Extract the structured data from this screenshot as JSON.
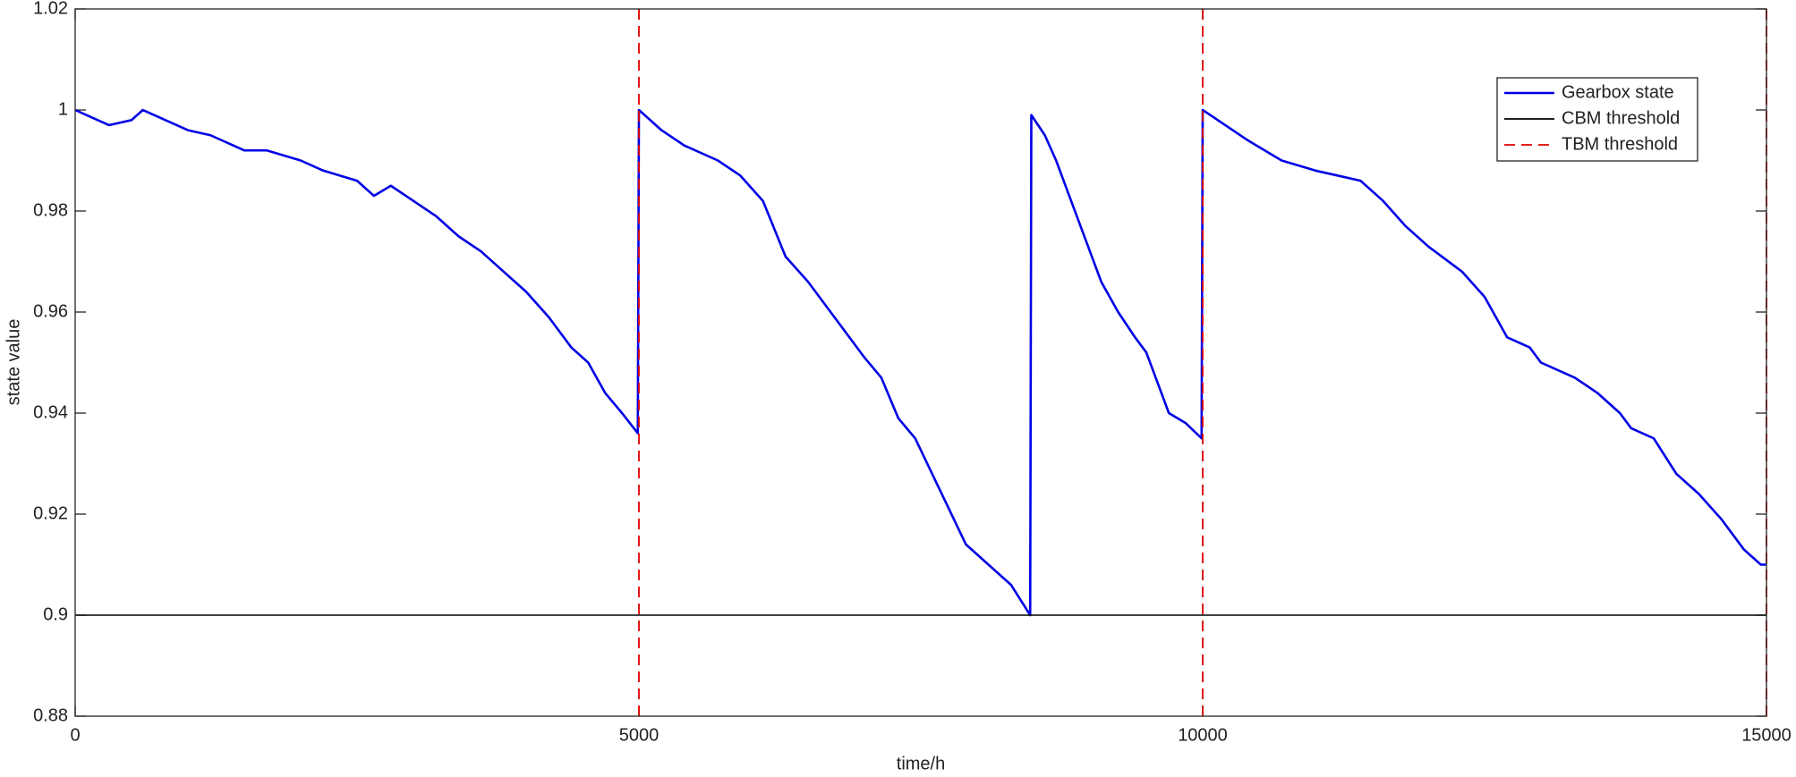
{
  "chart_data": {
    "type": "line",
    "xlabel": "time/h",
    "ylabel": "state value",
    "xlim": [
      0,
      15000
    ],
    "ylim": [
      0.88,
      1.02
    ],
    "xticks": [
      0,
      5000,
      10000,
      15000
    ],
    "yticks": [
      0.88,
      0.9,
      0.92,
      0.94,
      0.96,
      0.98,
      1,
      1.02
    ],
    "legend": "upper right",
    "series": [
      {
        "name": "Gearbox state",
        "color": "#0000e6",
        "x": [
          0,
          100,
          300,
          500,
          600,
          800,
          1000,
          1200,
          1500,
          1700,
          2000,
          2200,
          2500,
          2650,
          2800,
          3000,
          3200,
          3400,
          3600,
          3800,
          4000,
          4200,
          4400,
          4550,
          4700,
          4850,
          4990,
          5000,
          5200,
          5400,
          5700,
          5900,
          6100,
          6300,
          6500,
          6700,
          7000,
          7150,
          7300,
          7450,
          7600,
          7750,
          7900,
          8100,
          8300,
          8470,
          8480,
          8600,
          8700,
          8800,
          8900,
          9000,
          9100,
          9250,
          9400,
          9500,
          9600,
          9700,
          9850,
          9990,
          10000,
          10200,
          10400,
          10700,
          11000,
          11200,
          11400,
          11600,
          11800,
          12000,
          12300,
          12500,
          12700,
          12900,
          13000,
          13300,
          13500,
          13700,
          13800,
          14000,
          14200,
          14400,
          14600,
          14800,
          14950,
          15000
        ],
        "values": [
          1.0,
          0.999,
          0.997,
          0.998,
          1.0,
          0.998,
          0.996,
          0.995,
          0.992,
          0.992,
          0.99,
          0.988,
          0.986,
          0.983,
          0.985,
          0.982,
          0.979,
          0.975,
          0.972,
          0.968,
          0.964,
          0.959,
          0.953,
          0.95,
          0.944,
          0.94,
          0.936,
          1.0,
          0.996,
          0.993,
          0.99,
          0.987,
          0.982,
          0.971,
          0.966,
          0.96,
          0.951,
          0.947,
          0.939,
          0.935,
          0.928,
          0.921,
          0.914,
          0.91,
          0.906,
          0.9,
          0.999,
          0.995,
          0.99,
          0.984,
          0.978,
          0.972,
          0.966,
          0.96,
          0.955,
          0.952,
          0.946,
          0.94,
          0.938,
          0.935,
          1.0,
          0.997,
          0.994,
          0.99,
          0.988,
          0.987,
          0.986,
          0.982,
          0.977,
          0.973,
          0.968,
          0.963,
          0.955,
          0.953,
          0.95,
          0.947,
          0.944,
          0.94,
          0.937,
          0.935,
          0.928,
          0.924,
          0.919,
          0.913,
          0.91,
          0.91
        ]
      },
      {
        "name": "CBM threshold",
        "color": "#000000",
        "hline": 0.9
      },
      {
        "name": "TBM threshold",
        "color": "#e00000",
        "dash": true,
        "vlines": [
          5000,
          10000,
          15000
        ]
      }
    ]
  }
}
